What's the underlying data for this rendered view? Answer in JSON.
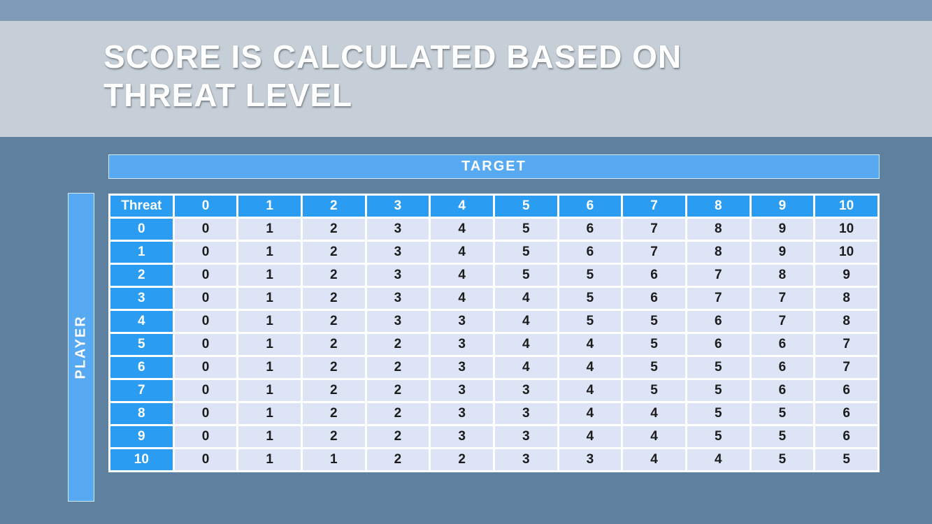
{
  "slide": {
    "title_line1": "SCORE IS CALCULATED BASED ON",
    "title_line2": "THREAT LEVEL"
  },
  "chart_data": {
    "type": "table",
    "title": "SCORE IS CALCULATED BASED ON THREAT LEVEL",
    "x_axis_label": "TARGET",
    "y_axis_label": "PLAYER",
    "corner_label": "Threat",
    "columns": [
      "0",
      "1",
      "2",
      "3",
      "4",
      "5",
      "6",
      "7",
      "8",
      "9",
      "10"
    ],
    "rows": [
      {
        "label": "0",
        "values": [
          "0",
          "1",
          "2",
          "3",
          "4",
          "5",
          "6",
          "7",
          "8",
          "9",
          "10"
        ]
      },
      {
        "label": "1",
        "values": [
          "0",
          "1",
          "2",
          "3",
          "4",
          "5",
          "6",
          "7",
          "8",
          "9",
          "10"
        ]
      },
      {
        "label": "2",
        "values": [
          "0",
          "1",
          "2",
          "3",
          "4",
          "5",
          "5",
          "6",
          "7",
          "8",
          "9"
        ]
      },
      {
        "label": "3",
        "values": [
          "0",
          "1",
          "2",
          "3",
          "4",
          "4",
          "5",
          "6",
          "7",
          "7",
          "8"
        ]
      },
      {
        "label": "4",
        "values": [
          "0",
          "1",
          "2",
          "3",
          "3",
          "4",
          "5",
          "5",
          "6",
          "7",
          "8"
        ]
      },
      {
        "label": "5",
        "values": [
          "0",
          "1",
          "2",
          "2",
          "3",
          "4",
          "4",
          "5",
          "6",
          "6",
          "7"
        ]
      },
      {
        "label": "6",
        "values": [
          "0",
          "1",
          "2",
          "2",
          "3",
          "4",
          "4",
          "5",
          "5",
          "6",
          "7"
        ]
      },
      {
        "label": "7",
        "values": [
          "0",
          "1",
          "2",
          "2",
          "3",
          "3",
          "4",
          "5",
          "5",
          "6",
          "6"
        ]
      },
      {
        "label": "8",
        "values": [
          "0",
          "1",
          "2",
          "2",
          "3",
          "3",
          "4",
          "4",
          "5",
          "5",
          "6"
        ]
      },
      {
        "label": "9",
        "values": [
          "0",
          "1",
          "2",
          "2",
          "3",
          "3",
          "4",
          "4",
          "5",
          "5",
          "6"
        ]
      },
      {
        "label": "10",
        "values": [
          "0",
          "1",
          "1",
          "2",
          "2",
          "3",
          "3",
          "4",
          "4",
          "5",
          "5"
        ]
      }
    ]
  },
  "colors": {
    "accent_blue": "#2a9df2",
    "bar_blue": "#57a9f1",
    "cell_bg": "#dce4f6",
    "top_bar": "#7e9cb8",
    "title_band": "rgba(214,218,223,0.87)"
  }
}
